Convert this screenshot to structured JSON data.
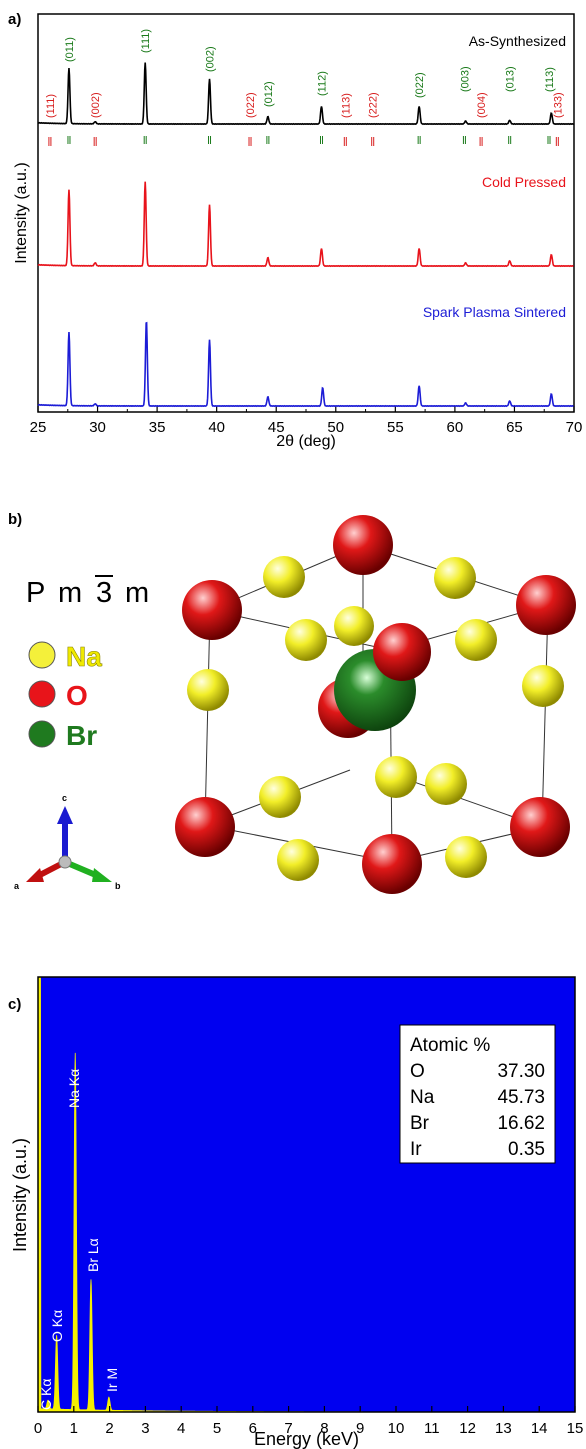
{
  "panels": {
    "a": "a)",
    "b": "b)",
    "c": "c)"
  },
  "colors": {
    "as_synthesized": "#000000",
    "cold_pressed": "#e8131b",
    "sps": "#1c1cd6",
    "index_green": "#1a7a1a",
    "index_red": "#d81e1e",
    "eds_bg": "#0000f0",
    "eds_spectrum": "#f5f000",
    "na_atom": "#f2ee28",
    "o_atom": "#dc1414",
    "br_atom": "#1f7a1f"
  },
  "chart_data": [
    {
      "type": "line",
      "panel": "a",
      "xlabel": "2θ (deg)",
      "ylabel": "Intensity (a.u.)",
      "xlim": [
        25,
        70
      ],
      "xticks": [
        25,
        30,
        35,
        40,
        45,
        50,
        55,
        60,
        65,
        70
      ],
      "grid": false,
      "series": [
        {
          "name": "As-Synthesized",
          "peaks": [
            {
              "x": 27.6,
              "h": 0.75
            },
            {
              "x": 29.8,
              "h": 0.03
            },
            {
              "x": 34.0,
              "h": 0.83
            },
            {
              "x": 39.4,
              "h": 0.61
            },
            {
              "x": 44.3,
              "h": 0.1
            },
            {
              "x": 48.8,
              "h": 0.24
            },
            {
              "x": 57.0,
              "h": 0.24
            },
            {
              "x": 60.9,
              "h": 0.04
            },
            {
              "x": 64.6,
              "h": 0.05
            },
            {
              "x": 68.1,
              "h": 0.15
            }
          ]
        },
        {
          "name": "Cold Pressed",
          "peaks": [
            {
              "x": 27.6,
              "h": 0.73
            },
            {
              "x": 29.8,
              "h": 0.03
            },
            {
              "x": 34.0,
              "h": 0.81
            },
            {
              "x": 39.4,
              "h": 0.59
            },
            {
              "x": 44.3,
              "h": 0.08
            },
            {
              "x": 48.8,
              "h": 0.17
            },
            {
              "x": 57.0,
              "h": 0.17
            },
            {
              "x": 60.9,
              "h": 0.03
            },
            {
              "x": 64.6,
              "h": 0.05
            },
            {
              "x": 68.1,
              "h": 0.11
            }
          ]
        },
        {
          "name": "Spark Plasma Sintered",
          "peaks": [
            {
              "x": 27.6,
              "h": 0.72
            },
            {
              "x": 29.8,
              "h": 0.02
            },
            {
              "x": 34.1,
              "h": 0.84
            },
            {
              "x": 39.4,
              "h": 0.65
            },
            {
              "x": 44.3,
              "h": 0.09
            },
            {
              "x": 48.9,
              "h": 0.18
            },
            {
              "x": 57.0,
              "h": 0.2
            },
            {
              "x": 60.9,
              "h": 0.03
            },
            {
              "x": 64.6,
              "h": 0.05
            },
            {
              "x": 68.1,
              "h": 0.12
            }
          ]
        }
      ],
      "annotations": [
        {
          "text": "(111)",
          "x": 26.0,
          "color": "red",
          "level": "low"
        },
        {
          "text": "(011)",
          "x": 27.6,
          "color": "green",
          "level": "high"
        },
        {
          "text": "(002)",
          "x": 29.8,
          "color": "red",
          "level": "low"
        },
        {
          "text": "(111)",
          "x": 34.0,
          "color": "green",
          "level": "high"
        },
        {
          "text": "(002)",
          "x": 39.4,
          "color": "green",
          "level": "high"
        },
        {
          "text": "(022)",
          "x": 42.8,
          "color": "red",
          "level": "low"
        },
        {
          "text": "(012)",
          "x": 44.3,
          "color": "green",
          "level": "mid"
        },
        {
          "text": "(112)",
          "x": 48.8,
          "color": "green",
          "level": "mid"
        },
        {
          "text": "(113)",
          "x": 50.8,
          "color": "red",
          "level": "low"
        },
        {
          "text": "(222)",
          "x": 53.1,
          "color": "red",
          "level": "low"
        },
        {
          "text": "(022)",
          "x": 57.0,
          "color": "green",
          "level": "high"
        },
        {
          "text": "(003)",
          "x": 60.8,
          "color": "green",
          "level": "mid"
        },
        {
          "text": "(004)",
          "x": 62.2,
          "color": "red",
          "level": "low"
        },
        {
          "text": "(013)",
          "x": 64.6,
          "color": "green",
          "level": "mid"
        },
        {
          "text": "(113)",
          "x": 67.9,
          "color": "green",
          "level": "mid"
        },
        {
          "text": "(133)",
          "x": 68.6,
          "color": "red",
          "level": "low"
        }
      ],
      "reference_ticks": {
        "green": [
          27.6,
          34.0,
          39.4,
          44.3,
          48.8,
          57.0,
          60.8,
          64.6,
          67.9
        ],
        "red": [
          26.0,
          29.8,
          42.8,
          50.8,
          53.1,
          62.2,
          68.6
        ]
      }
    },
    {
      "type": "line",
      "panel": "c",
      "xlabel": "Energy (keV)",
      "ylabel": "Intensity (a.u.)",
      "xlim": [
        0,
        15
      ],
      "xticks": [
        0,
        1,
        2,
        3,
        4,
        5,
        6,
        7,
        8,
        9,
        10,
        11,
        12,
        13,
        14,
        15
      ],
      "grid": false,
      "peaks": [
        {
          "x": 0.28,
          "h": 0.02,
          "label": "C Kα"
        },
        {
          "x": 0.52,
          "h": 0.17,
          "label": "O Kα"
        },
        {
          "x": 1.04,
          "h": 0.82,
          "label": "Na Kα"
        },
        {
          "x": 1.48,
          "h": 0.3,
          "label": "Br Lα"
        },
        {
          "x": 1.98,
          "h": 0.03,
          "label": "Ir M"
        }
      ],
      "table": {
        "header": "Atomic %",
        "rows": [
          {
            "element": "O",
            "value": "37.30"
          },
          {
            "element": "Na",
            "value": "45.73"
          },
          {
            "element": "Br",
            "value": "16.62"
          },
          {
            "element": "Ir",
            "value": "0.35"
          }
        ]
      }
    }
  ],
  "structure": {
    "space_group": [
      "P",
      "m",
      "3",
      "m"
    ],
    "legend": [
      {
        "label": "Na",
        "key": "na"
      },
      {
        "label": "O",
        "key": "o"
      },
      {
        "label": "Br",
        "key": "br"
      }
    ],
    "axes": {
      "a": "a",
      "b": "b",
      "c": "c"
    }
  }
}
